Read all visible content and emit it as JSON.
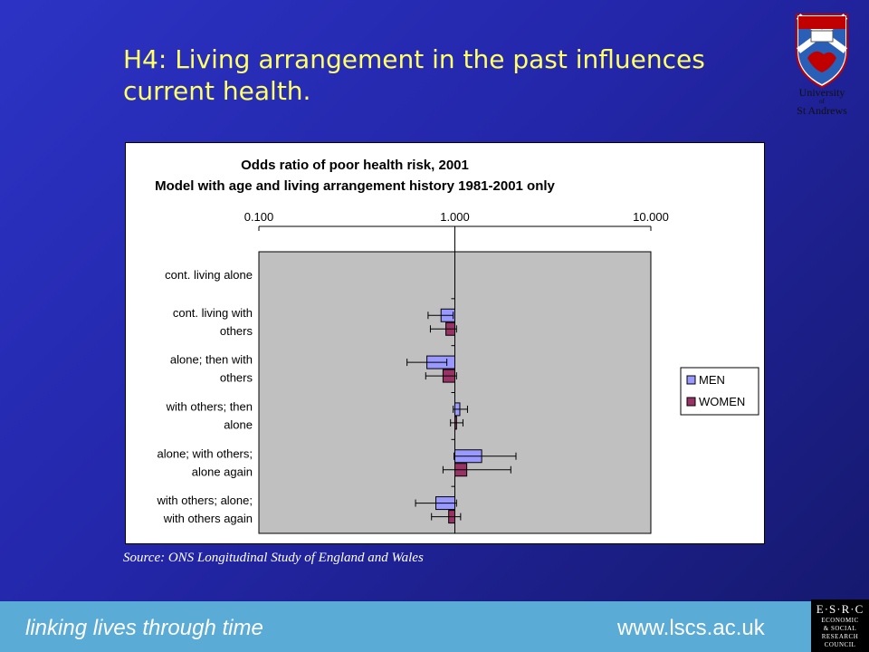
{
  "slide": {
    "title": "H4: Living arrangement in the past influences current health.",
    "source": "Source: ONS Longitudinal Study of England and Wales",
    "tagline": "linking lives through time",
    "website": "www.lscs.ac.uk",
    "university": {
      "line1": "University",
      "line2": "of",
      "line3": "St Andrews"
    },
    "esrc_logo": {
      "line1": "E·S·R·C",
      "line2": "ECONOMIC",
      "line3": "& SOCIAL",
      "line4": "RESEARCH",
      "line5": "COUNCIL"
    },
    "colors": {
      "background": "#2326a8",
      "title": "#ffff66",
      "footer": "#5aabd6"
    }
  },
  "chart_data": {
    "type": "bar",
    "orientation": "horizontal",
    "title": "Odds ratio of poor health risk, 2001",
    "subtitle": "Model with age and living arrangement history 1981-2001 only",
    "x_scale": "log",
    "xlim": [
      0.1,
      10
    ],
    "x_ticks": [
      "0.100",
      "1.000",
      "10.000"
    ],
    "x_tick_values": [
      0.1,
      1,
      10
    ],
    "baseline": 1,
    "categories": [
      [
        "cont. living alone"
      ],
      [
        "cont. living with",
        "others"
      ],
      [
        "alone; then with",
        "others"
      ],
      [
        "with others; then",
        "alone"
      ],
      [
        "alone; with others;",
        "alone again"
      ],
      [
        "with others; alone;",
        "with others again"
      ]
    ],
    "series": [
      {
        "name": "MEN",
        "color": "#9999ff",
        "values": [
          null,
          0.85,
          0.72,
          1.06,
          1.37,
          0.8
        ],
        "ci_low": [
          null,
          0.73,
          0.57,
          0.98,
          0.99,
          0.63
        ],
        "ci_high": [
          null,
          0.98,
          0.91,
          1.16,
          2.05,
          1.02
        ]
      },
      {
        "name": "WOMEN",
        "color": "#993366",
        "values": [
          null,
          0.9,
          0.87,
          1.02,
          1.15,
          0.93
        ],
        "ci_low": [
          null,
          0.75,
          0.71,
          0.95,
          0.87,
          0.76
        ],
        "ci_high": [
          null,
          1.02,
          1.02,
          1.1,
          1.93,
          1.07
        ]
      }
    ],
    "legend_position": "right",
    "plot_background": "#c0c0c0",
    "grid": false
  }
}
